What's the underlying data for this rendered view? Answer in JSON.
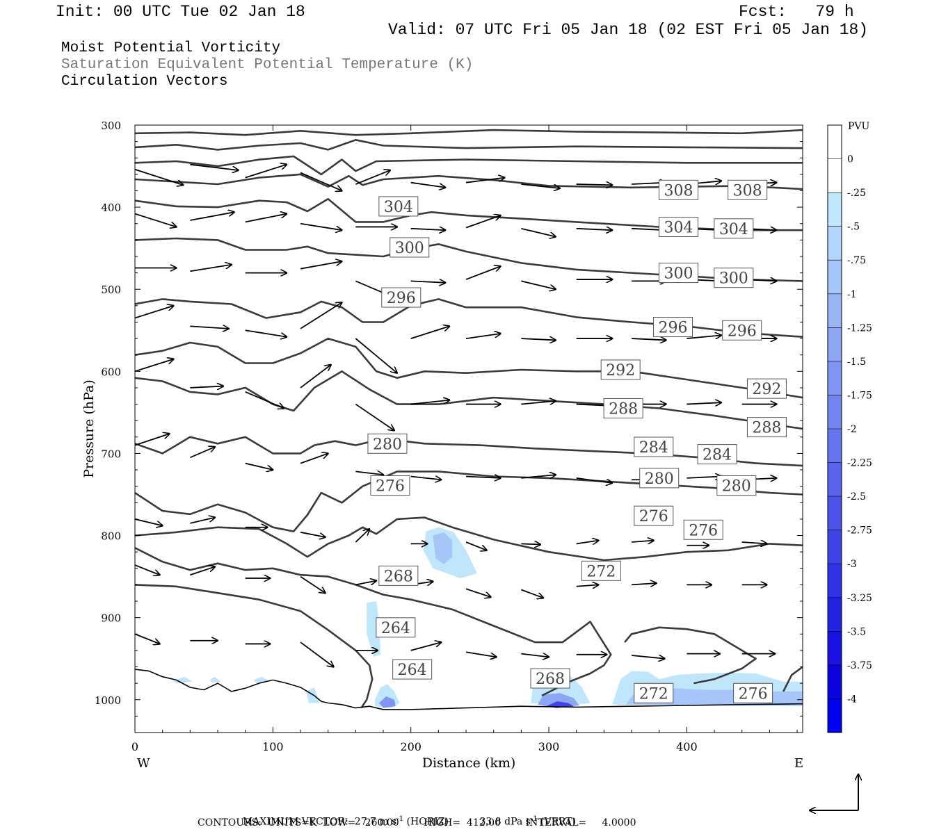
{
  "header": {
    "init": "Init: 00 UTC Tue 02 Jan 18",
    "fcst": "Fcst:   79 h",
    "valid": "Valid: 07 UTC Fri 05 Jan 18 (02 EST Fri 05 Jan 18)",
    "fields": [
      "Moist Potential Vorticity",
      "Saturation Equivalent Potential Temperature (K)",
      "Circulation Vectors"
    ]
  },
  "colors": {
    "contour": "#3a3a3a",
    "field_gray": "#777777",
    "pv_palette": [
      "#ffffff",
      "#ffffff",
      "#bfe6fb",
      "#b3d6fa",
      "#a6c5f8",
      "#99b5f6",
      "#8ca5f4",
      "#8094f2",
      "#7384f0",
      "#6674ee",
      "#5963ec",
      "#4d53ea",
      "#4043e8",
      "#3332e6",
      "#2622e4",
      "#1a12e2",
      "#0d02e0",
      "#0000f5"
    ]
  },
  "chart_data": {
    "type": "cross-section",
    "xlabel": "Distance (km)",
    "ylabel": "Pressure (hPa)",
    "xlim": [
      0,
      484
    ],
    "ylim": [
      300,
      1040
    ],
    "x_ticks": [
      0,
      100,
      200,
      300,
      400
    ],
    "y_ticks": [
      300,
      400,
      500,
      600,
      700,
      800,
      900,
      1000
    ],
    "x_end_labels": {
      "left": "W",
      "right": "E"
    },
    "colorbar": {
      "unit": "PVU",
      "labels": [
        "0",
        "-.25",
        "-.5",
        "-.75",
        "-1",
        "-1.25",
        "-1.5",
        "-1.75",
        "-2",
        "-2.25",
        "-2.5",
        "-2.75",
        "-3",
        "-3.25",
        "-3.5",
        "-3.75",
        "-4"
      ]
    },
    "contour_labels": [
      {
        "text": "308",
        "x": 394,
        "p": 379
      },
      {
        "text": "308",
        "x": 444,
        "p": 379
      },
      {
        "text": "304",
        "x": 191,
        "p": 399
      },
      {
        "text": "304",
        "x": 394,
        "p": 424
      },
      {
        "text": "304",
        "x": 434,
        "p": 426
      },
      {
        "text": "300",
        "x": 199,
        "p": 449
      },
      {
        "text": "300",
        "x": 394,
        "p": 480
      },
      {
        "text": "300",
        "x": 434,
        "p": 486
      },
      {
        "text": "296",
        "x": 193,
        "p": 510
      },
      {
        "text": "296",
        "x": 390,
        "p": 546
      },
      {
        "text": "296",
        "x": 440,
        "p": 550
      },
      {
        "text": "292",
        "x": 352,
        "p": 598
      },
      {
        "text": "292",
        "x": 458,
        "p": 621
      },
      {
        "text": "288",
        "x": 354,
        "p": 645
      },
      {
        "text": "288",
        "x": 458,
        "p": 668
      },
      {
        "text": "284",
        "x": 376,
        "p": 692
      },
      {
        "text": "284",
        "x": 422,
        "p": 701
      },
      {
        "text": "280",
        "x": 183,
        "p": 688
      },
      {
        "text": "280",
        "x": 380,
        "p": 730
      },
      {
        "text": "280",
        "x": 436,
        "p": 739
      },
      {
        "text": "276",
        "x": 185,
        "p": 739
      },
      {
        "text": "276",
        "x": 376,
        "p": 776
      },
      {
        "text": "276",
        "x": 412,
        "p": 793
      },
      {
        "text": "272",
        "x": 338,
        "p": 843
      },
      {
        "text": "268",
        "x": 191,
        "p": 849
      },
      {
        "text": "264",
        "x": 189,
        "p": 912
      },
      {
        "text": "264",
        "x": 201,
        "p": 963
      },
      {
        "text": "268",
        "x": 301,
        "p": 974
      },
      {
        "text": "272",
        "x": 376,
        "p": 992
      },
      {
        "text": "276",
        "x": 448,
        "p": 992
      }
    ]
  },
  "footer": {
    "max_vector_label": "MAXIMUM VECTOR:",
    "max_horiz_value": "27.7",
    "max_horiz_units": "m s",
    "max_horiz_tag": "(HORIZ)",
    "max_vert_value": "33.8",
    "max_vert_units": "dPa s",
    "max_vert_tag": "(VERT)",
    "exponent": "-1",
    "contours_line": "CONTOURS:  UNITS=K  LOW=   260.00        HIGH=  412.00        INTERVAL=     4.0000"
  }
}
